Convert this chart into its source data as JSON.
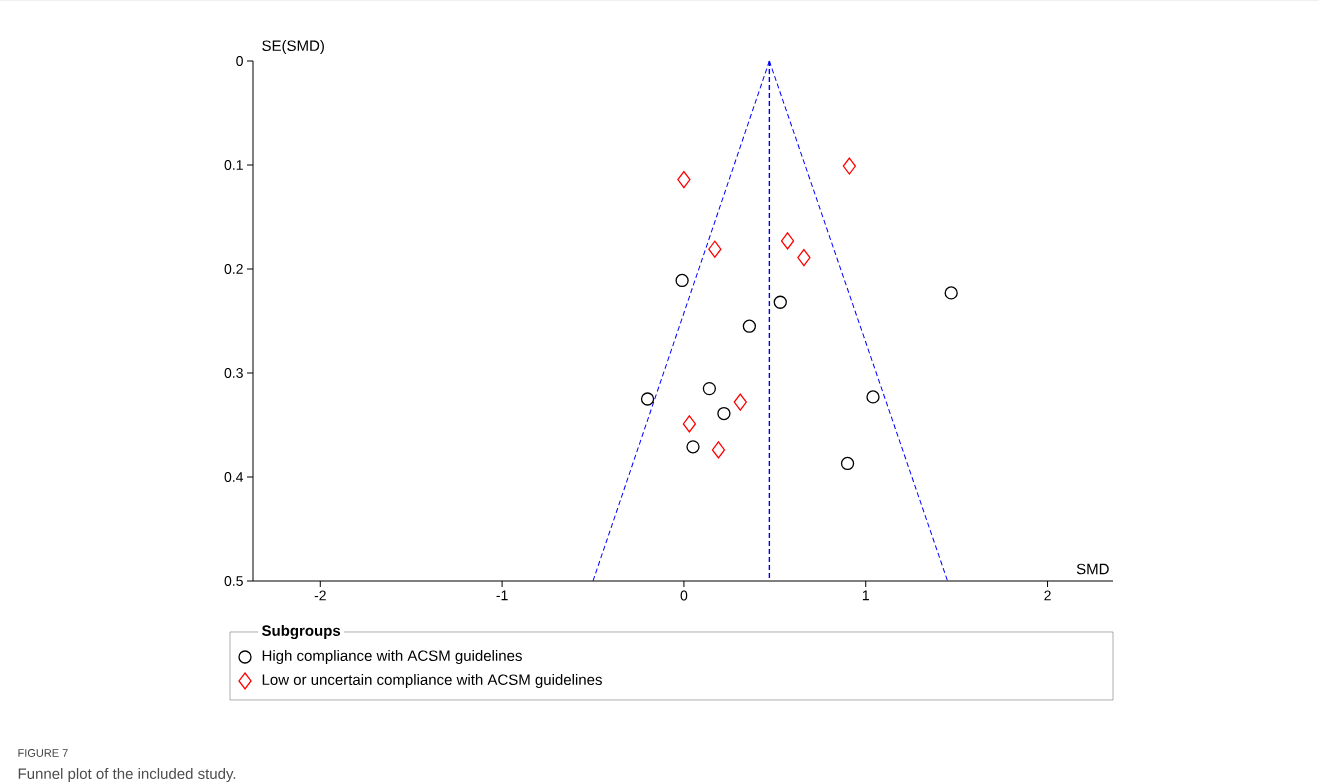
{
  "chart_data": {
    "type": "scatter",
    "xlabel": "SMD",
    "ylabel": "SE(SMD)",
    "legend_title": "Subgroups",
    "legend": "bottom",
    "grid": false,
    "xlim": [
      -2.37,
      2.36
    ],
    "ylim": [
      0.5,
      0
    ],
    "xticks": [
      -2,
      -1,
      0,
      1,
      2
    ],
    "yticks": [
      0,
      0.1,
      0.2,
      0.3,
      0.4,
      0.5
    ],
    "series": [
      {
        "name": "High compliance with ACSM guidelines",
        "marker": "circle",
        "color": "#000000",
        "x": [
          -0.01,
          0.53,
          0.36,
          1.47,
          -0.2,
          0.14,
          0.22,
          0.05,
          1.04,
          0.9
        ],
        "values": [
          0.211,
          0.232,
          0.255,
          0.223,
          0.325,
          0.315,
          0.339,
          0.371,
          0.323,
          0.387
        ]
      },
      {
        "name": "Low or uncertain compliance with ACSM guidelines",
        "marker": "diamond",
        "color": "#ff0000",
        "x": [
          0.0,
          0.91,
          0.17,
          0.57,
          0.66,
          0.31,
          0.03,
          0.19
        ],
        "values": [
          0.114,
          0.101,
          0.181,
          0.173,
          0.189,
          0.328,
          0.349,
          0.374
        ]
      },
      {
        "type": "line",
        "marker": "none",
        "line_style": "dashed",
        "color": "#0000ff",
        "x": [
          0.47,
          -0.5
        ],
        "values": [
          0,
          0.5
        ]
      },
      {
        "type": "line",
        "marker": "none",
        "line_style": "dashed",
        "color": "#0000ff",
        "x": [
          0.47,
          1.45
        ],
        "values": [
          0,
          0.5
        ]
      }
    ],
    "ref_lines": [
      {
        "axis": "x",
        "value": 0.47,
        "color": "#0000ff",
        "line_style": "dashed"
      }
    ],
    "annotations": [
      "FIGURE 7",
      "Funnel plot of the included study."
    ]
  }
}
